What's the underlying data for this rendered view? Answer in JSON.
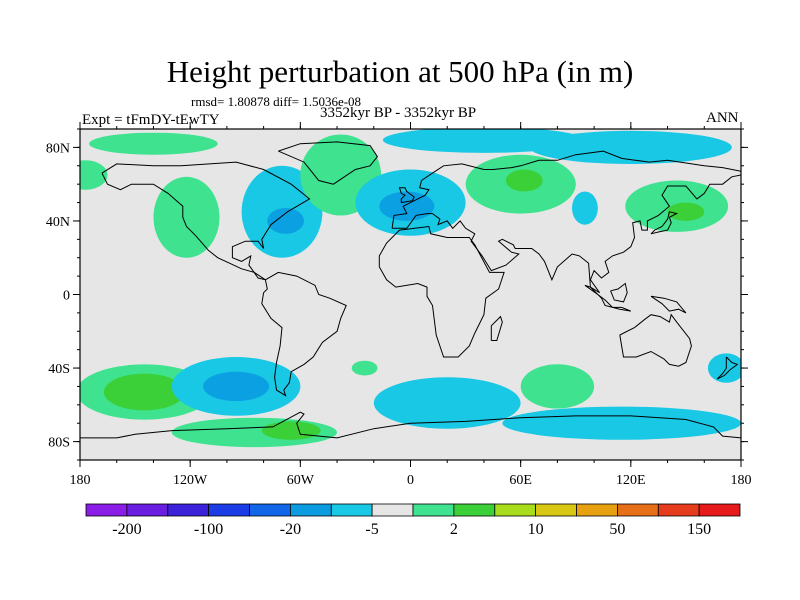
{
  "title": "Height perturbation at 500 hPa (in m)",
  "stats": "rmsd= 1.80878 diff= 1.5036e-08",
  "experiment": "Expt = tFmDY-tEwTY",
  "period": "3352kyr BP - 3352kyr BP",
  "season": "ANN",
  "map": {
    "projection": "cylindrical-equidistant",
    "lon_range": [
      -180,
      180
    ],
    "lat_range": [
      -90,
      90
    ],
    "background_color": "#e6e6e6",
    "lat_ticks": [
      {
        "lat": 80,
        "label": "80N"
      },
      {
        "lat": 40,
        "label": "40N"
      },
      {
        "lat": 0,
        "label": "0"
      },
      {
        "lat": -40,
        "label": "40S"
      },
      {
        "lat": -80,
        "label": "80S"
      }
    ],
    "lon_ticks": [
      {
        "lon": -180,
        "label": "180"
      },
      {
        "lon": -120,
        "label": "120W"
      },
      {
        "lon": -60,
        "label": "60W"
      },
      {
        "lon": 0,
        "label": "0"
      },
      {
        "lon": 60,
        "label": "60E"
      },
      {
        "lon": 120,
        "label": "120E"
      },
      {
        "lon": 180,
        "label": "180"
      }
    ],
    "anomaly_regions": [
      {
        "name": "arctic-north-pacific",
        "lon": -140,
        "lat": 82,
        "rlon": 35,
        "rlat": 6,
        "color": "#3ee28f"
      },
      {
        "name": "alaska",
        "lon": -177,
        "lat": 65,
        "rlon": 12,
        "rlat": 8,
        "color": "#3ee28f"
      },
      {
        "name": "northeast-pacific",
        "lon": -122,
        "lat": 42,
        "rlon": 18,
        "rlat": 22,
        "color": "#3ee28f"
      },
      {
        "name": "north-america",
        "lon": -70,
        "lat": 45,
        "rlon": 22,
        "rlat": 25,
        "color": "#19c8e4"
      },
      {
        "name": "north-america-core",
        "lon": -68,
        "lat": 40,
        "rlon": 10,
        "rlat": 7,
        "color": "#0ba0e2"
      },
      {
        "name": "greenland",
        "lon": -38,
        "lat": 65,
        "rlon": 22,
        "rlat": 22,
        "color": "#3ee28f"
      },
      {
        "name": "north-atlantic",
        "lon": 0,
        "lat": 50,
        "rlon": 30,
        "rlat": 18,
        "color": "#19c8e4"
      },
      {
        "name": "north-atlantic-core",
        "lon": -2,
        "lat": 48,
        "rlon": 15,
        "rlat": 8,
        "color": "#0ba0e2"
      },
      {
        "name": "arctic-europe",
        "lon": 40,
        "lat": 84,
        "rlon": 55,
        "rlat": 7,
        "color": "#19c8e4"
      },
      {
        "name": "asia",
        "lon": 60,
        "lat": 60,
        "rlon": 30,
        "rlat": 16,
        "color": "#3ee28f"
      },
      {
        "name": "asia-core",
        "lon": 62,
        "lat": 62,
        "rlon": 10,
        "rlat": 6,
        "color": "#3cd038"
      },
      {
        "name": "siberia-arctic",
        "lon": 120,
        "lat": 80,
        "rlon": 55,
        "rlat": 9,
        "color": "#19c8e4"
      },
      {
        "name": "east-asia",
        "lon": 95,
        "lat": 47,
        "rlon": 7,
        "rlat": 9,
        "color": "#19c8e4"
      },
      {
        "name": "northwest-pacific",
        "lon": 145,
        "lat": 48,
        "rlon": 28,
        "rlat": 14,
        "color": "#3ee28f"
      },
      {
        "name": "northwest-pacific-core",
        "lon": 150,
        "lat": 45,
        "rlon": 10,
        "rlat": 5,
        "color": "#3cd038"
      },
      {
        "name": "south-pacific-west",
        "lon": -145,
        "lat": -53,
        "rlon": 37,
        "rlat": 15,
        "color": "#3ee28f"
      },
      {
        "name": "south-pacific-west-core",
        "lon": -145,
        "lat": -53,
        "rlon": 22,
        "rlat": 10,
        "color": "#3cd038"
      },
      {
        "name": "south-pacific",
        "lon": -95,
        "lat": -50,
        "rlon": 35,
        "rlat": 16,
        "color": "#19c8e4"
      },
      {
        "name": "south-pacific-core",
        "lon": -95,
        "lat": -50,
        "rlon": 18,
        "rlat": 8,
        "color": "#0ba0e2"
      },
      {
        "name": "south-atlantic-small",
        "lon": -25,
        "lat": -40,
        "rlon": 7,
        "rlat": 4,
        "color": "#3ee28f"
      },
      {
        "name": "southern-ocean-pacific",
        "lon": -85,
        "lat": -75,
        "rlon": 45,
        "rlat": 8,
        "color": "#3ee28f"
      },
      {
        "name": "antarctic-peninsula",
        "lon": -65,
        "lat": -74,
        "rlon": 16,
        "rlat": 5,
        "color": "#3cd038"
      },
      {
        "name": "southern-ocean-atlantic",
        "lon": 20,
        "lat": -59,
        "rlon": 40,
        "rlat": 14,
        "color": "#19c8e4"
      },
      {
        "name": "southern-ocean-indian",
        "lon": 80,
        "lat": -50,
        "rlon": 20,
        "rlat": 12,
        "color": "#3ee28f"
      },
      {
        "name": "southern-ocean-east",
        "lon": 115,
        "lat": -70,
        "rlon": 65,
        "rlat": 9,
        "color": "#19c8e4"
      },
      {
        "name": "australia-south",
        "lon": 172,
        "lat": -40,
        "rlon": 10,
        "rlat": 8,
        "color": "#19c8e4"
      }
    ]
  },
  "colorbar": {
    "colors": [
      "#8a1de6",
      "#6a1ee0",
      "#3c22d8",
      "#1c3de6",
      "#1266e8",
      "#0b9be0",
      "#19c8e4",
      "#e6e6e6",
      "#3ee28f",
      "#3cd038",
      "#a8dc1c",
      "#d8c814",
      "#e6a010",
      "#e6701a",
      "#e43c1c",
      "#e61a1a"
    ],
    "labels": [
      "-200",
      "-100",
      "-20",
      "-5",
      "2",
      "10",
      "50",
      "150"
    ]
  }
}
